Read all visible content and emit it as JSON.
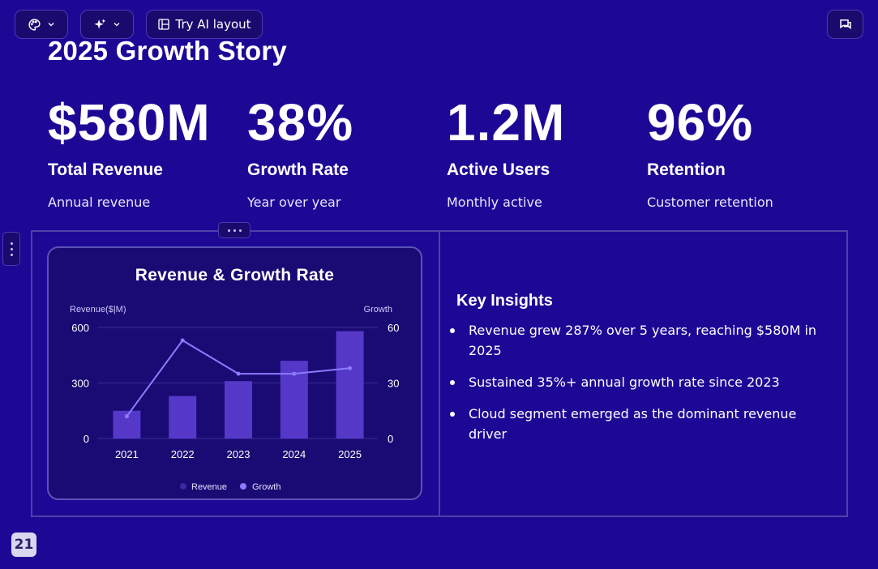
{
  "toolbar": {
    "theme_icon": "palette-icon",
    "ai_icon": "sparkles-icon",
    "layout_icon": "layout-icon",
    "layout_label": "Try AI layout",
    "comment_icon": "comment-icon"
  },
  "slide": {
    "title": "2025 Growth Story",
    "stats": [
      {
        "value": "$580M",
        "label": "Total Revenue",
        "sub": "Annual revenue"
      },
      {
        "value": "38%",
        "label": "Growth Rate",
        "sub": "Year over year"
      },
      {
        "value": "1.2M",
        "label": "Active Users",
        "sub": "Monthly active"
      },
      {
        "value": "96%",
        "label": "Retention",
        "sub": "Customer retention"
      }
    ],
    "insights": {
      "title": "Key Insights",
      "items": [
        "Revenue grew 287% over 5 years, reaching $580M in 2025",
        "Sustained 35%+ annual growth rate since 2023",
        "Cloud segment emerged as the dominant revenue driver"
      ]
    },
    "page_number": "21"
  },
  "chart_data": {
    "type": "bar",
    "title": "Revenue & Growth Rate",
    "categories": [
      "2021",
      "2022",
      "2023",
      "2024",
      "2025"
    ],
    "series": [
      {
        "name": "Revenue",
        "type": "bar",
        "axis": "left",
        "values": [
          150,
          230,
          310,
          420,
          580
        ],
        "color": "#5538c8"
      },
      {
        "name": "Growth",
        "type": "line",
        "axis": "right",
        "values": [
          12,
          53,
          35,
          35,
          38
        ],
        "color": "#8b7cff"
      }
    ],
    "ylabel_left": "Revenue($|M)",
    "ylabel_right": "Growth",
    "ylim_left": [
      0,
      600
    ],
    "ylim_right": [
      0,
      60
    ],
    "yticks_left": [
      "0",
      "300",
      "600"
    ],
    "yticks_right": [
      "0",
      "30",
      "60"
    ],
    "legend": "bottom",
    "grid": true
  },
  "colors": {
    "background": "#1d0896",
    "bar": "#5538c8",
    "line": "#8b7cff",
    "frame": "#4c41a8"
  }
}
